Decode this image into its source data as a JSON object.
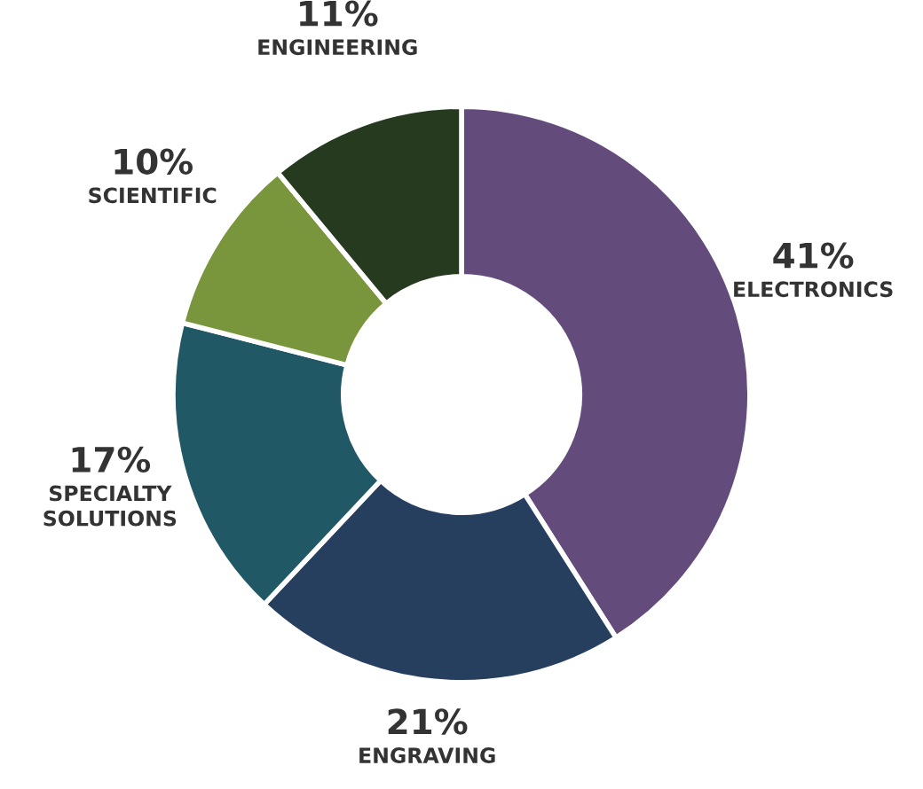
{
  "chart_data": {
    "type": "donut",
    "categories": [
      "ELECTRONICS",
      "ENGRAVING",
      "SPECIALTY SOLUTIONS",
      "SCIENTIFIC",
      "ENGINEERING"
    ],
    "values": [
      41,
      21,
      17,
      10,
      11
    ],
    "value_labels": [
      "41%",
      "21%",
      "17%",
      "10%",
      "11%"
    ],
    "colors": [
      "#634c7c",
      "#273f5f",
      "#215866",
      "#7a963c",
      "#253a1f"
    ]
  }
}
